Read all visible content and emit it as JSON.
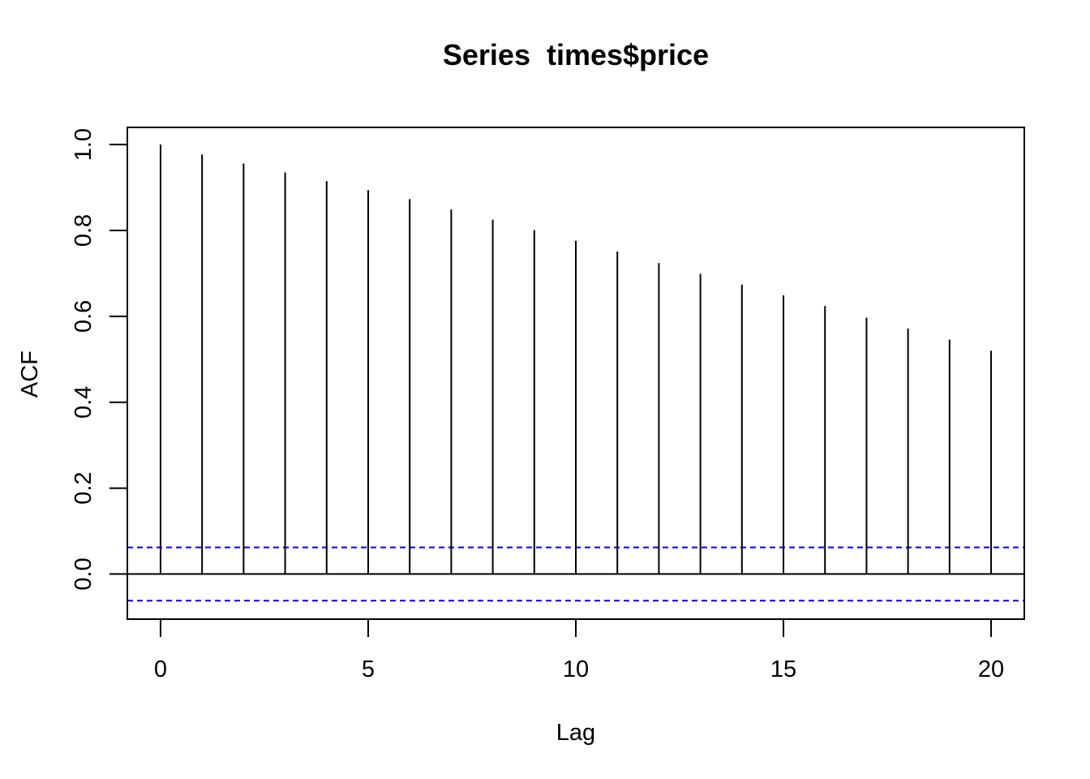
{
  "chart_data": {
    "type": "bar",
    "title": "Series  times$price",
    "xlabel": "Lag",
    "ylabel": "ACF",
    "xlim": [
      -0.8,
      20.8
    ],
    "ylim": [
      -0.105,
      1.04
    ],
    "x_ticks": [
      "0",
      "5",
      "10",
      "15",
      "20"
    ],
    "y_ticks": [
      "0.0",
      "0.2",
      "0.4",
      "0.6",
      "0.8",
      "1.0"
    ],
    "lags": [
      0,
      1,
      2,
      3,
      4,
      5,
      6,
      7,
      8,
      9,
      10,
      11,
      12,
      13,
      14,
      15,
      16,
      17,
      18,
      19,
      20
    ],
    "values": [
      1.0,
      0.977,
      0.956,
      0.935,
      0.915,
      0.894,
      0.873,
      0.849,
      0.825,
      0.801,
      0.776,
      0.751,
      0.724,
      0.699,
      0.674,
      0.649,
      0.624,
      0.597,
      0.572,
      0.546,
      0.52
    ],
    "confidence_bound": 0.062,
    "confidence_color": "#0000ff",
    "bar_color": "#000000",
    "grid": false
  }
}
